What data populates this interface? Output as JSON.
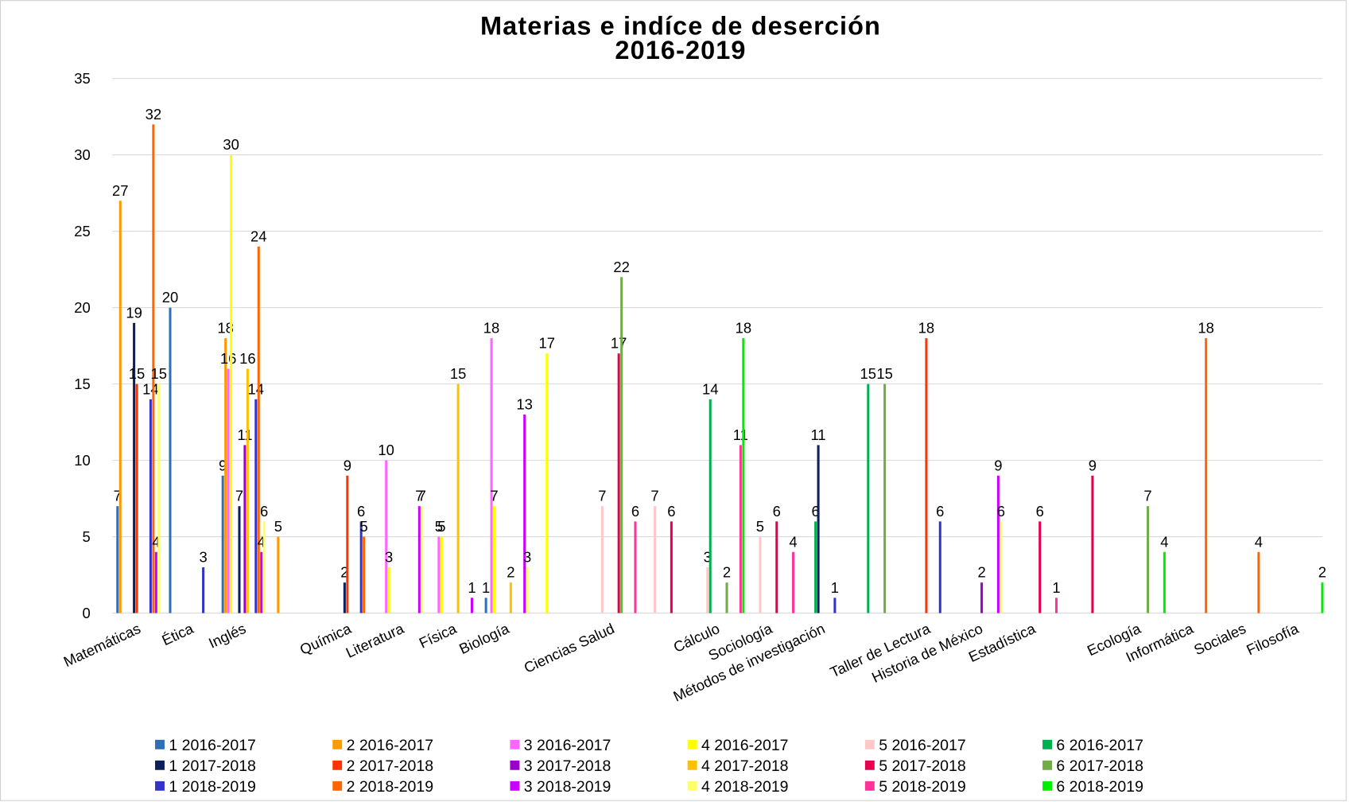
{
  "chart_data": {
    "type": "bar",
    "title": "Materias e indíce de deserción",
    "subtitle": "2016-2019",
    "categories": [
      "Matemáticas",
      "Ética",
      "Inglés",
      null,
      "Química",
      "Literatura",
      "Física",
      "Biología",
      null,
      "Ciencias Salud",
      null,
      "Cálculo",
      "Sociología",
      "Métodos de investigación",
      null,
      "Taller de Lectura",
      "Historia de México",
      "Estadística",
      null,
      "Ecología",
      "Informática",
      "Sociales",
      "Filosofía"
    ],
    "ylim": [
      0,
      35
    ],
    "yticks": [
      0,
      5,
      10,
      15,
      20,
      25,
      30,
      35
    ],
    "grid": true,
    "legend": "bottom",
    "series": [
      {
        "name": "1 2016-2017",
        "color": "#2f6fb8",
        "values": [
          7,
          20,
          9,
          null,
          null,
          null,
          null,
          1,
          null,
          null,
          null,
          null,
          null,
          null,
          null,
          null,
          null,
          null,
          null,
          null,
          null,
          null,
          null
        ]
      },
      {
        "name": "2 2016-2017",
        "color": "#ff9900",
        "values": [
          27,
          null,
          18,
          5,
          null,
          null,
          null,
          null,
          null,
          null,
          null,
          null,
          null,
          null,
          null,
          null,
          null,
          null,
          null,
          null,
          null,
          null,
          null
        ]
      },
      {
        "name": "3 2016-2017",
        "color": "#ff66ff",
        "values": [
          null,
          null,
          16,
          null,
          null,
          10,
          5,
          18,
          null,
          null,
          null,
          null,
          null,
          null,
          null,
          null,
          null,
          null,
          null,
          null,
          null,
          null,
          null
        ]
      },
      {
        "name": "4 2016-2017",
        "color": "#ffff00",
        "values": [
          null,
          null,
          30,
          null,
          null,
          3,
          5,
          7,
          17,
          null,
          null,
          null,
          null,
          null,
          null,
          null,
          null,
          null,
          null,
          null,
          null,
          null,
          null
        ]
      },
      {
        "name": "5 2016-2017",
        "color": "#ffc8c8",
        "values": [
          null,
          null,
          null,
          null,
          null,
          null,
          null,
          null,
          null,
          7,
          7,
          3,
          5,
          null,
          null,
          null,
          null,
          null,
          null,
          null,
          null,
          null,
          null
        ]
      },
      {
        "name": "6 2016-2017",
        "color": "#00b050",
        "values": [
          null,
          null,
          null,
          null,
          null,
          null,
          null,
          null,
          null,
          null,
          null,
          14,
          null,
          6,
          15,
          null,
          null,
          null,
          null,
          null,
          null,
          null,
          null
        ]
      },
      {
        "name": "1 2017-2018",
        "color": "#0a1f5c",
        "values": [
          19,
          null,
          7,
          null,
          2,
          null,
          null,
          null,
          null,
          null,
          null,
          null,
          null,
          11,
          null,
          null,
          null,
          null,
          null,
          null,
          null,
          null,
          null
        ]
      },
      {
        "name": "2 2017-2018",
        "color": "#ff3300",
        "values": [
          15,
          null,
          null,
          null,
          9,
          null,
          null,
          null,
          null,
          null,
          null,
          null,
          null,
          null,
          null,
          18,
          null,
          null,
          null,
          null,
          null,
          null,
          null
        ]
      },
      {
        "name": "3 2017-2018",
        "color": "#9900cc",
        "values": [
          null,
          null,
          11,
          null,
          null,
          null,
          null,
          null,
          null,
          null,
          null,
          null,
          null,
          null,
          null,
          null,
          2,
          null,
          null,
          null,
          null,
          null,
          null
        ]
      },
      {
        "name": "4 2017-2018",
        "color": "#ffc000",
        "values": [
          null,
          null,
          16,
          null,
          null,
          null,
          15,
          2,
          null,
          null,
          null,
          null,
          null,
          null,
          null,
          null,
          null,
          null,
          null,
          null,
          null,
          null,
          null
        ]
      },
      {
        "name": "5 2017-2018",
        "color": "#e6004c",
        "values": [
          null,
          null,
          null,
          null,
          null,
          null,
          null,
          null,
          null,
          17,
          6,
          null,
          6,
          null,
          null,
          null,
          null,
          6,
          9,
          null,
          null,
          null,
          null
        ]
      },
      {
        "name": "6 2017-2018",
        "color": "#70ad47",
        "values": [
          null,
          null,
          null,
          null,
          null,
          null,
          null,
          null,
          null,
          22,
          null,
          2,
          null,
          null,
          15,
          null,
          null,
          null,
          null,
          7,
          null,
          null,
          null
        ]
      },
      {
        "name": "1 2018-2019",
        "color": "#3333cc",
        "values": [
          14,
          3,
          14,
          null,
          6,
          null,
          null,
          null,
          null,
          null,
          null,
          null,
          null,
          1,
          null,
          6,
          null,
          null,
          null,
          null,
          null,
          null,
          null
        ]
      },
      {
        "name": "2 2018-2019",
        "color": "#ff6600",
        "values": [
          32,
          null,
          24,
          null,
          5,
          null,
          null,
          null,
          null,
          null,
          null,
          null,
          null,
          null,
          null,
          null,
          null,
          null,
          null,
          null,
          18,
          4,
          null
        ]
      },
      {
        "name": "3 2018-2019",
        "color": "#cc00ff",
        "values": [
          4,
          null,
          4,
          null,
          null,
          7,
          1,
          13,
          null,
          null,
          null,
          null,
          null,
          null,
          null,
          null,
          9,
          null,
          null,
          null,
          null,
          null,
          null
        ]
      },
      {
        "name": "4 2018-2019",
        "color": "#ffff66",
        "values": [
          15,
          null,
          6,
          null,
          null,
          7,
          null,
          3,
          null,
          null,
          null,
          null,
          null,
          null,
          null,
          null,
          6,
          null,
          null,
          null,
          null,
          null,
          null
        ]
      },
      {
        "name": "5 2018-2019",
        "color": "#ff3399",
        "values": [
          null,
          null,
          null,
          null,
          null,
          null,
          null,
          null,
          null,
          6,
          null,
          11,
          4,
          null,
          null,
          null,
          null,
          1,
          null,
          null,
          null,
          null,
          null
        ]
      },
      {
        "name": "6 2018-2019",
        "color": "#00ee00",
        "values": [
          null,
          null,
          null,
          null,
          null,
          null,
          null,
          null,
          null,
          null,
          null,
          18,
          null,
          null,
          null,
          null,
          null,
          null,
          null,
          4,
          null,
          null,
          2
        ]
      }
    ]
  }
}
